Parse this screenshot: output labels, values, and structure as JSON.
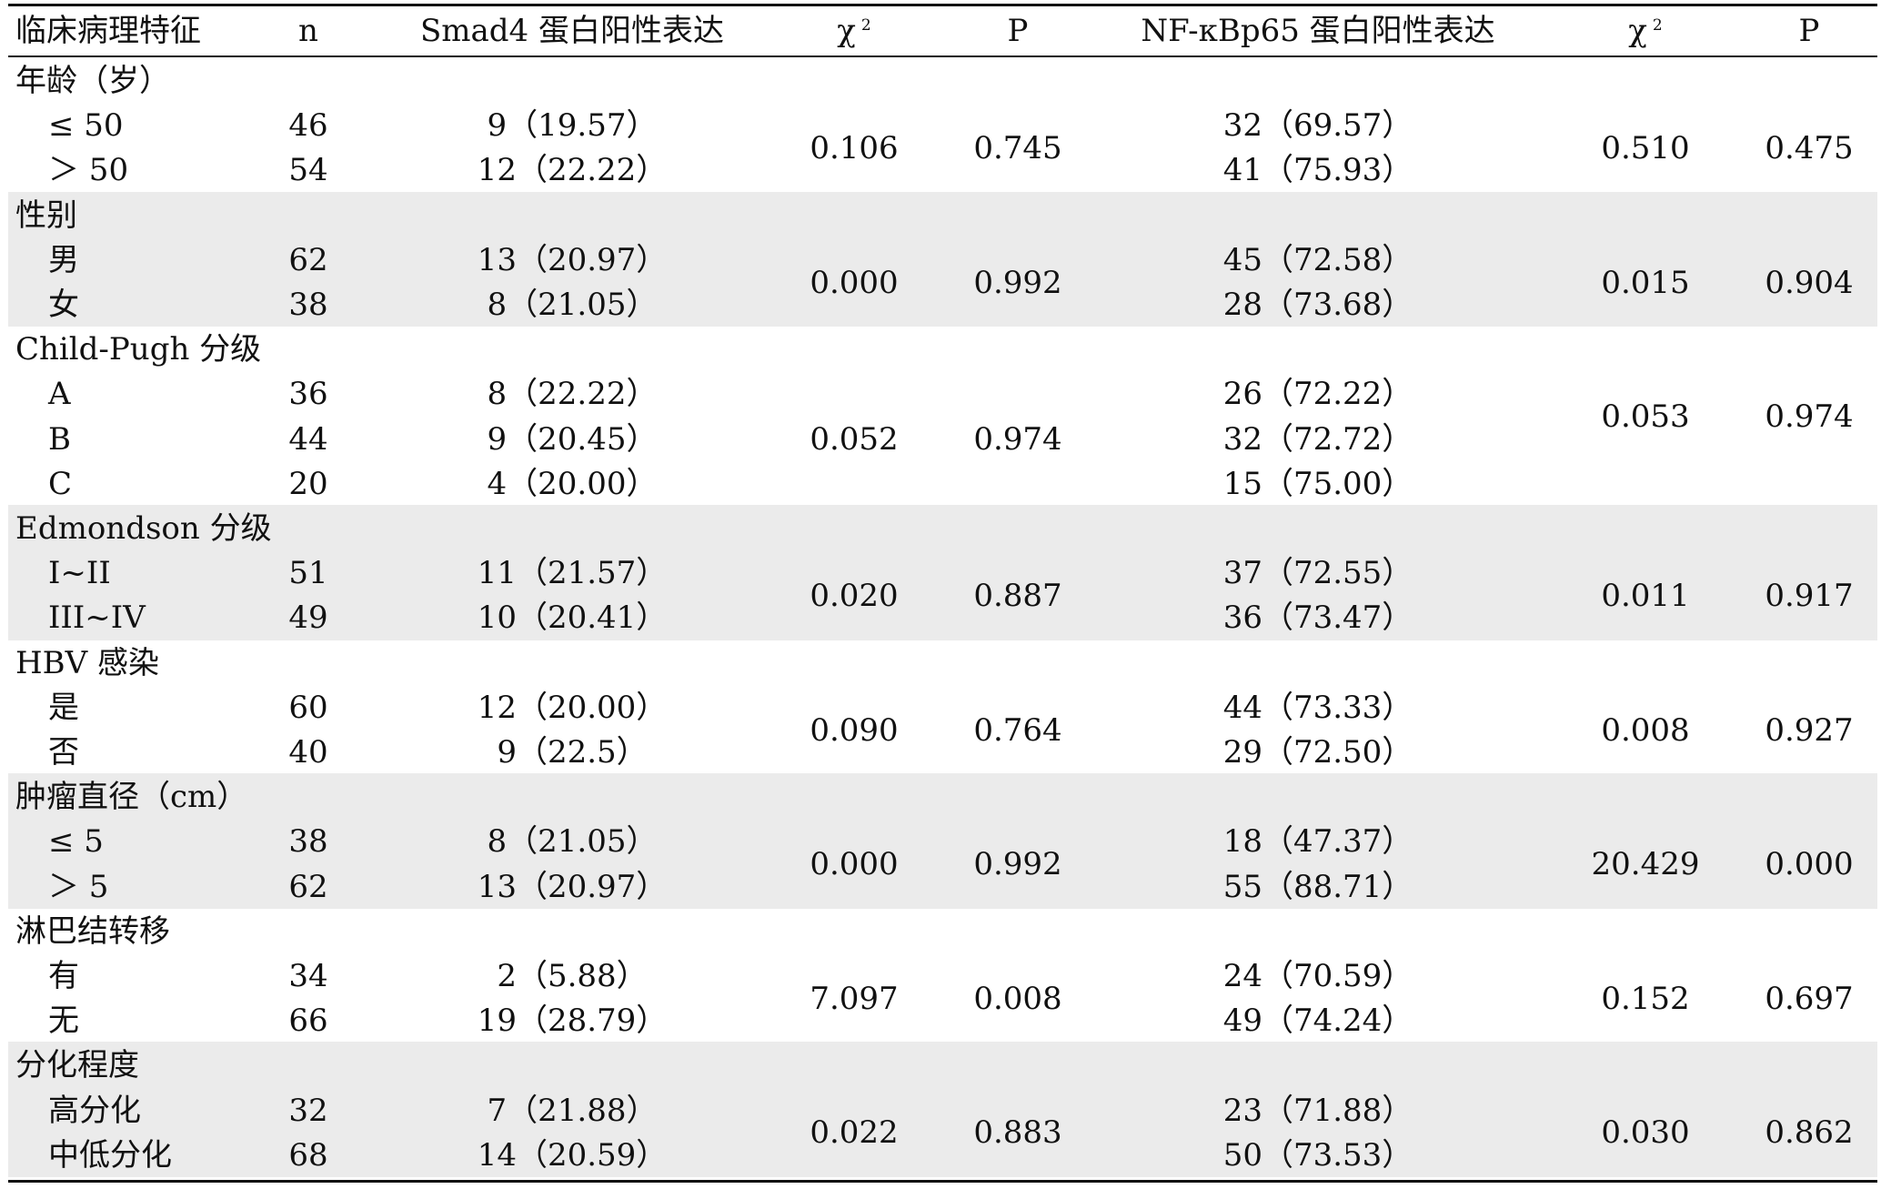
{
  "table": {
    "headers": {
      "feature": "临床病理特征",
      "n": "n",
      "smad4": "Smad4 蛋白阳性表达",
      "chi_symbol": "χ",
      "chi_sup": "2",
      "p": "P",
      "nfkb": "NF-κBp65 蛋白阳性表达",
      "chi2_symbol": "χ",
      "chi2_sup": "2",
      "p2": "P"
    },
    "groups": [
      {
        "title": "年龄（岁）",
        "rows": [
          {
            "label": "≤ 50",
            "n": "46",
            "smad4": "9（19.57）",
            "nfkb": "32（69.57）"
          },
          {
            "label": "＞ 50",
            "n": "54",
            "smad4": "12（22.22）",
            "nfkb": "41（75.93）"
          }
        ],
        "chi_smad4": "0.106",
        "p_smad4": "0.745",
        "chi_nfkb": "0.510",
        "p_nfkb": "0.475"
      },
      {
        "title": "性别",
        "rows": [
          {
            "label": "男",
            "n": "62",
            "smad4": "13（20.97）",
            "nfkb": "45（72.58）"
          },
          {
            "label": "女",
            "n": "38",
            "smad4": "8（21.05）",
            "nfkb": "28（73.68）"
          }
        ],
        "chi_smad4": "0.000",
        "p_smad4": "0.992",
        "chi_nfkb": "0.015",
        "p_nfkb": "0.904"
      },
      {
        "title": "Child-Pugh 分级",
        "rows": [
          {
            "label": "A",
            "n": "36",
            "smad4": "8（22.22）",
            "nfkb": "26（72.22）"
          },
          {
            "label": "B",
            "n": "44",
            "smad4": "9（20.45）",
            "nfkb": "32（72.72）"
          },
          {
            "label": "C",
            "n": "20",
            "smad4": "4（20.00）",
            "nfkb": "15（75.00）"
          }
        ],
        "chi_smad4": "0.052",
        "p_smad4": "0.974",
        "chi_nfkb": "0.053",
        "p_nfkb": "0.974"
      },
      {
        "title": "Edmondson 分级",
        "rows": [
          {
            "label": "I~II",
            "n": "51",
            "smad4": "11（21.57）",
            "nfkb": "37（72.55）"
          },
          {
            "label": "III~IV",
            "n": "49",
            "smad4": "10（20.41）",
            "nfkb": "36（73.47）"
          }
        ],
        "chi_smad4": "0.020",
        "p_smad4": "0.887",
        "chi_nfkb": "0.011",
        "p_nfkb": "0.917"
      },
      {
        "title": "HBV 感染",
        "rows": [
          {
            "label": "是",
            "n": "60",
            "smad4": "12（20.00）",
            "nfkb": "44（73.33）"
          },
          {
            "label": "否",
            "n": "40",
            "smad4": "9（22.5）",
            "nfkb": "29（72.50）"
          }
        ],
        "chi_smad4": "0.090",
        "p_smad4": "0.764",
        "chi_nfkb": "0.008",
        "p_nfkb": "0.927"
      },
      {
        "title": "肿瘤直径（cm）",
        "rows": [
          {
            "label": "≤ 5",
            "n": "38",
            "smad4": "8（21.05）",
            "nfkb": "18（47.37）"
          },
          {
            "label": "＞ 5",
            "n": "62",
            "smad4": "13（20.97）",
            "nfkb": "55（88.71）"
          }
        ],
        "chi_smad4": "0.000",
        "p_smad4": "0.992",
        "chi_nfkb": "20.429",
        "p_nfkb": "0.000"
      },
      {
        "title": "淋巴结转移",
        "rows": [
          {
            "label": "有",
            "n": "34",
            "smad4": "2（5.88）",
            "nfkb": "24（70.59）"
          },
          {
            "label": "无",
            "n": "66",
            "smad4": "19（28.79）",
            "nfkb": "49（74.24）"
          }
        ],
        "chi_smad4": "7.097",
        "p_smad4": "0.008",
        "chi_nfkb": "0.152",
        "p_nfkb": "0.697"
      },
      {
        "title": "分化程度",
        "rows": [
          {
            "label": "高分化",
            "n": "32",
            "smad4": "7（21.88）",
            "nfkb": "23（71.88）"
          },
          {
            "label": "中低分化",
            "n": "68",
            "smad4": "14（20.59）",
            "nfkb": "50（73.53）"
          }
        ],
        "chi_smad4": "0.022",
        "p_smad4": "0.883",
        "chi_nfkb": "0.030",
        "p_nfkb": "0.862"
      }
    ]
  },
  "colors": {
    "band": "#ebebeb",
    "text": "#111111",
    "rule": "#111111"
  }
}
